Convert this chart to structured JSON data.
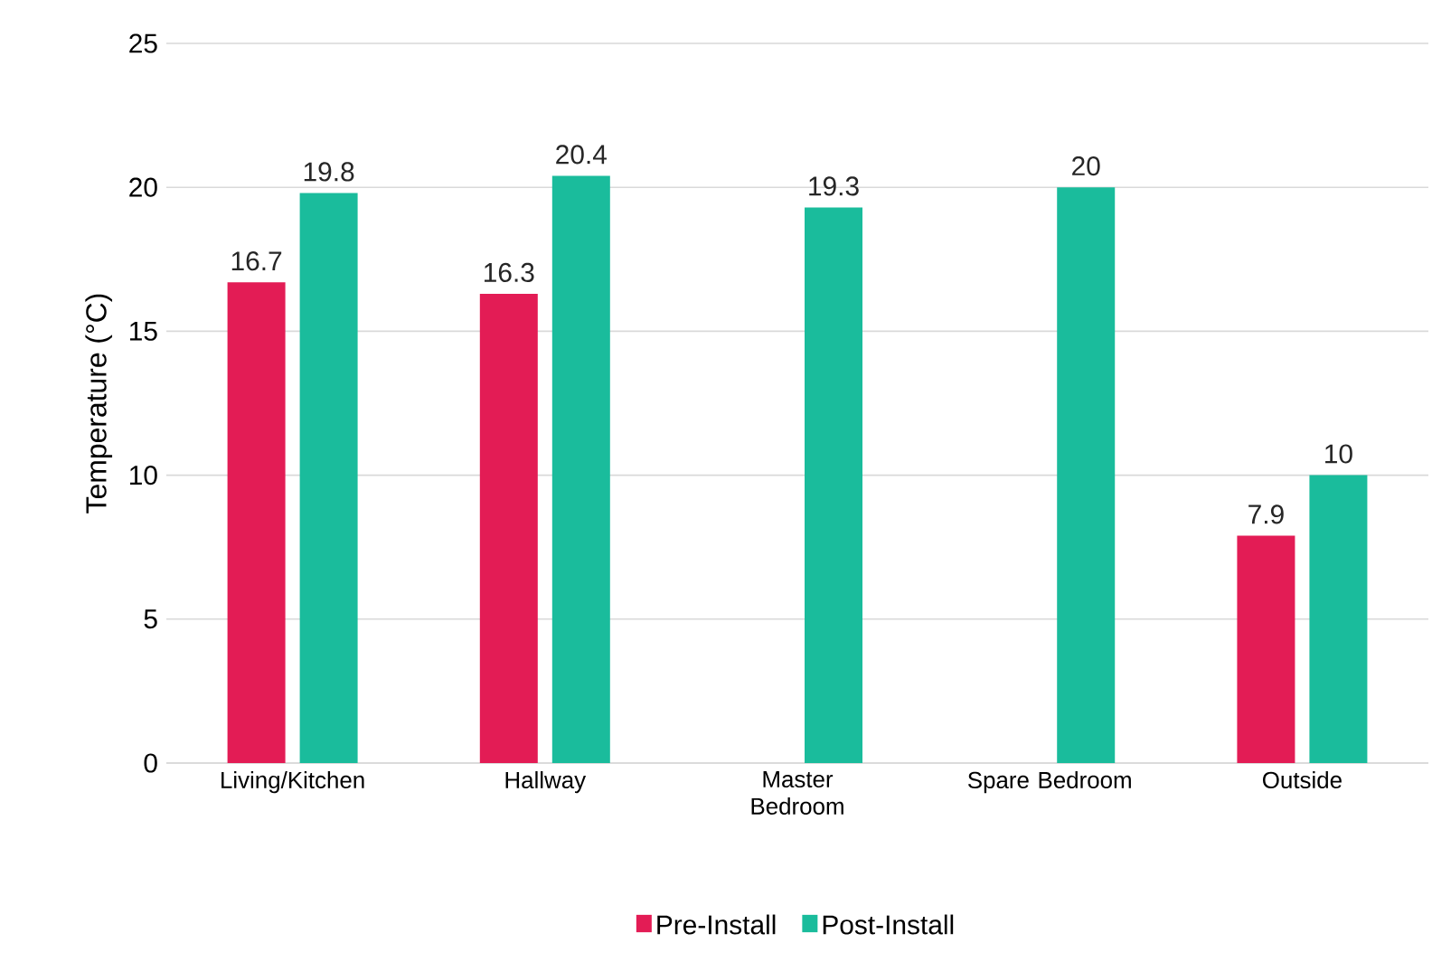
{
  "chart_data": {
    "type": "bar",
    "ylabel": "Temperature (°C)",
    "categories": [
      "Living/Kitchen",
      "Hallway",
      "Master Bedroom",
      "Spare Bedroom",
      "Outside"
    ],
    "series": [
      {
        "name": "Pre-Install",
        "color": "#e31c55",
        "values": [
          16.7,
          16.3,
          null,
          null,
          7.9
        ]
      },
      {
        "name": "Post-Install",
        "color": "#1abc9c",
        "values": [
          19.8,
          20.4,
          19.3,
          20,
          10
        ]
      }
    ],
    "ylim": [
      0,
      25
    ],
    "yticks": [
      0,
      5,
      10,
      15,
      20,
      25
    ],
    "grid": "y",
    "legend": "bottom",
    "data_labels": true
  }
}
